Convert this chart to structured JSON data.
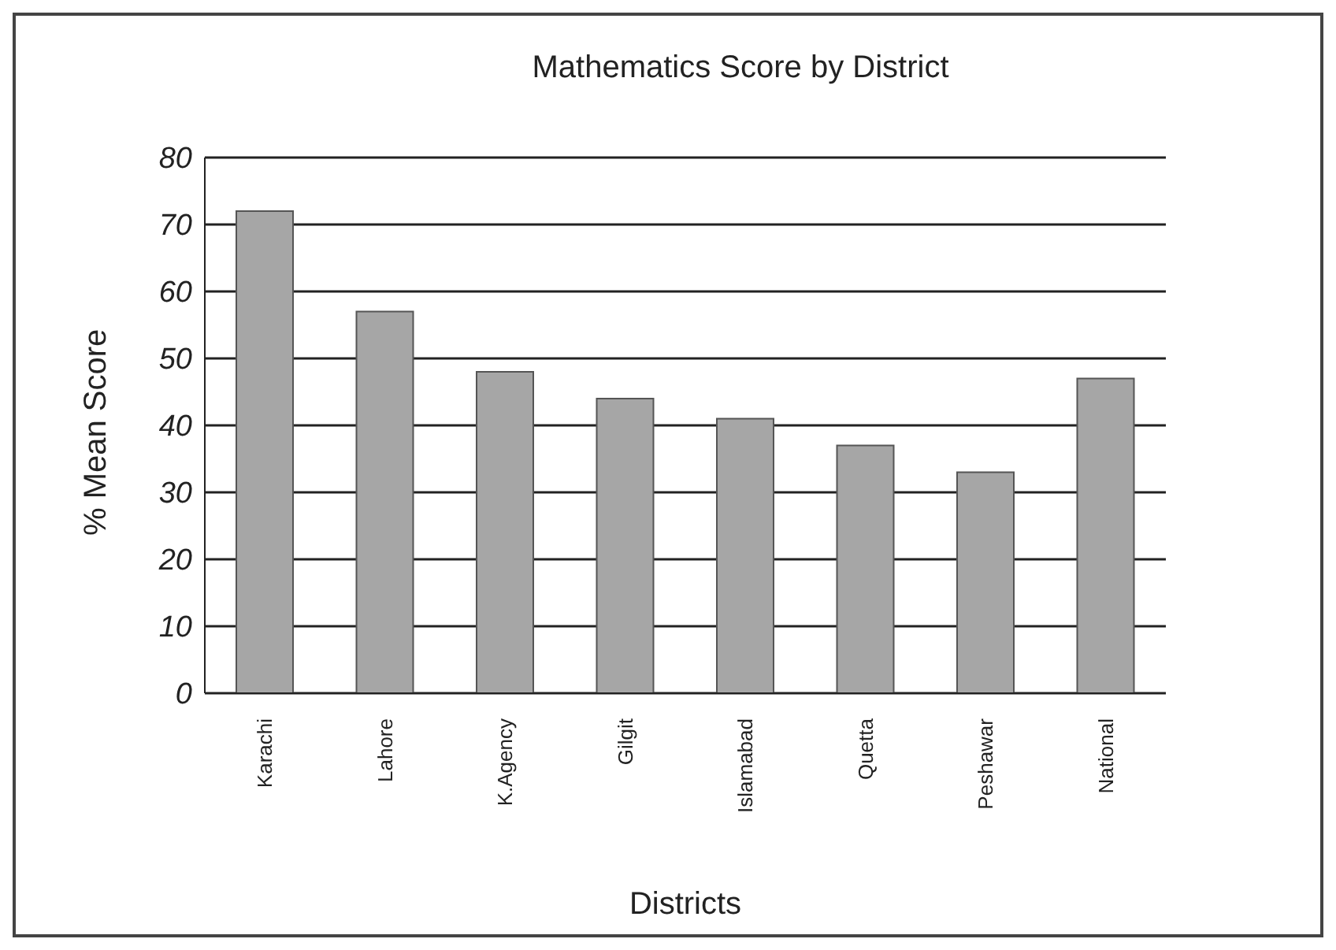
{
  "chart_data": {
    "type": "bar",
    "title": "Mathematics Score by District",
    "xlabel": "Districts",
    "ylabel": "% Mean Score",
    "categories": [
      "Karachi",
      "Lahore",
      "K.Agency",
      "Gilgit",
      "Islamabad",
      "Quetta",
      "Peshawar",
      "National"
    ],
    "values": [
      72,
      57,
      48,
      44,
      41,
      37,
      33,
      47
    ],
    "color": "#a6a6a6",
    "ylim": [
      0,
      80
    ],
    "yticks": [
      0,
      10,
      20,
      30,
      40,
      50,
      60,
      70,
      80
    ],
    "grid": "y",
    "legend": false
  }
}
